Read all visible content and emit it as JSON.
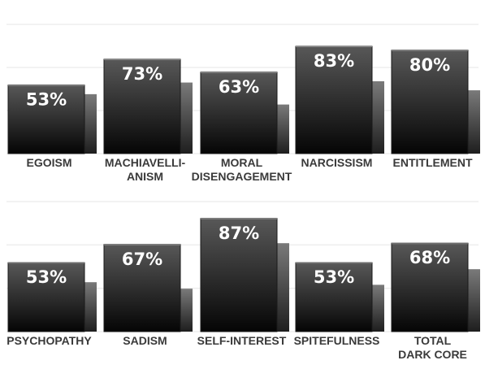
{
  "chart_data": {
    "type": "bar",
    "grid": true,
    "ylim": [
      0,
      100
    ],
    "unit": "%",
    "panels": [
      {
        "categories": [
          [
            "EGOISM"
          ],
          [
            "MACHIAVELLI-",
            "ANISM"
          ],
          [
            "MORAL",
            "DISENGAGEMENT"
          ],
          [
            "NARCISSISM"
          ],
          [
            "ENTITLEMENT"
          ]
        ],
        "series": [
          {
            "values": [
              53,
              73,
              63,
              83,
              80
            ],
            "labels": [
              "53%",
              "73%",
              "63%",
              "83%",
              "80%"
            ]
          },
          {
            "values": [
              46,
              55,
              38,
              56,
              49
            ]
          }
        ]
      },
      {
        "categories": [
          [
            "PSYCHOPATHY"
          ],
          [
            "SADISM"
          ],
          [
            "SELF-INTEREST"
          ],
          [
            "SPITEFULNESS"
          ],
          [
            "TOTAL",
            "DARK CORE"
          ]
        ],
        "series": [
          {
            "values": [
              53,
              67,
              87,
              53,
              68
            ],
            "labels": [
              "53%",
              "67%",
              "87%",
              "53%",
              "68%"
            ]
          },
          {
            "values": [
              38,
              33,
              68,
              36,
              48
            ]
          }
        ]
      }
    ]
  },
  "colors": {
    "bar_front_top": "#585858",
    "bar_front_bottom": "#050505",
    "bar_back_top": "#7a7a7a",
    "bar_back_bottom": "#1e1e1e",
    "grid": "#e6e6e6",
    "label": "#3a3a3a"
  }
}
